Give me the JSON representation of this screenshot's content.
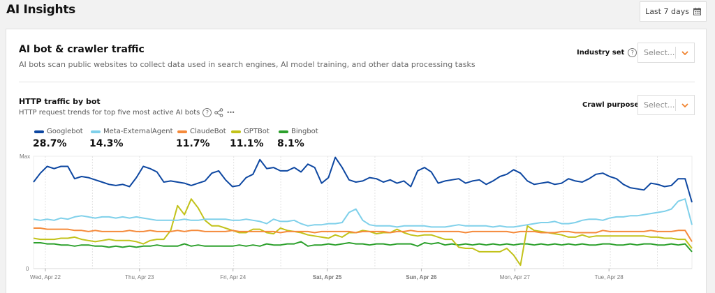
{
  "header": {
    "title": "AI Insights",
    "date_range": "Last 7 days",
    "calendar_icon": "calendar-icon"
  },
  "section": {
    "title": "AI bot & crawler traffic",
    "description": "AI bots scan public websites to collect data used in search engines, AI model training, and other data processing tasks",
    "industry_label": "Industry set",
    "industry_placeholder": "Select..."
  },
  "panel": {
    "title": "HTTP traffic by bot",
    "description": "HTTP request trends for top five most active AI bots",
    "crawl_label": "Crawl purpose",
    "crawl_placeholder": "Select...",
    "help_glyph": "?",
    "more_glyph": "•••"
  },
  "colors": {
    "accent": "#f0822d"
  },
  "chart_data": {
    "type": "line",
    "title": "HTTP traffic by bot",
    "ylabel": "",
    "xlabel": "",
    "y_ticks": [
      "Max",
      "0"
    ],
    "ylim": [
      0,
      100
    ],
    "x_ticks": [
      {
        "label": "Wed, Apr 22",
        "bold": false,
        "pos": 1.8
      },
      {
        "label": "Thu, Apr 23",
        "bold": false,
        "pos": 16.1
      },
      {
        "label": "Fri, Apr 24",
        "bold": false,
        "pos": 30.3
      },
      {
        "label": "Sat, Apr 25",
        "bold": true,
        "pos": 44.6
      },
      {
        "label": "Sun, Apr 26",
        "bold": true,
        "pos": 58.9
      },
      {
        "label": "Mon, Apr 27",
        "bold": false,
        "pos": 73.1
      },
      {
        "label": "Tue, Apr 28",
        "bold": false,
        "pos": 87.4
      }
    ],
    "x_range": [
      0,
      100
    ],
    "series": [
      {
        "name": "Googlebot",
        "share": "28.7%",
        "color": "#0d47a1",
        "values": [
          77,
          85,
          91,
          89,
          91,
          91,
          80,
          82,
          81,
          79,
          77,
          75,
          74,
          75,
          73,
          81,
          91,
          89,
          86,
          77,
          78,
          77,
          76,
          74,
          76,
          78,
          85,
          87,
          79,
          73,
          74,
          81,
          84,
          97,
          89,
          90,
          87,
          87,
          90,
          86,
          93,
          90,
          76,
          81,
          99,
          90,
          79,
          77,
          78,
          81,
          80,
          77,
          79,
          76,
          78,
          73,
          87,
          90,
          86,
          76,
          78,
          79,
          80,
          76,
          78,
          79,
          75,
          78,
          82,
          84,
          88,
          85,
          78,
          75,
          76,
          77,
          75,
          76,
          80,
          78,
          77,
          80,
          84,
          85,
          82,
          80,
          75,
          72,
          71,
          70,
          76,
          75,
          73,
          74,
          80,
          80,
          59
        ]
      },
      {
        "name": "Meta-ExternalAgent",
        "share": "14.3%",
        "color": "#7fd0ea",
        "values": [
          44,
          43,
          44,
          43,
          45,
          44,
          46,
          47,
          46,
          45,
          46,
          46,
          45,
          46,
          45,
          46,
          45,
          44,
          43,
          43,
          43,
          43,
          44,
          43,
          43,
          44,
          44,
          44,
          44,
          43,
          43,
          44,
          43,
          42,
          40,
          44,
          42,
          42,
          43,
          40,
          38,
          39,
          39,
          40,
          40,
          41,
          50,
          53,
          43,
          39,
          38,
          38,
          38,
          37,
          38,
          38,
          38,
          38,
          37,
          37,
          37,
          38,
          39,
          38,
          38,
          38,
          38,
          37,
          38,
          37,
          37,
          38,
          39,
          40,
          41,
          41,
          42,
          40,
          40,
          41,
          43,
          44,
          44,
          43,
          45,
          46,
          46,
          47,
          47,
          48,
          49,
          50,
          51,
          53,
          60,
          62,
          39
        ]
      },
      {
        "name": "ClaudeBot",
        "share": "11.7%",
        "color": "#f58a3b",
        "values": [
          36,
          36,
          35,
          35,
          35,
          35,
          34,
          34,
          33,
          34,
          33,
          33,
          33,
          33,
          34,
          33,
          33,
          34,
          33,
          33,
          33,
          34,
          33,
          34,
          34,
          33,
          33,
          33,
          33,
          34,
          33,
          33,
          33,
          33,
          33,
          33,
          32,
          33,
          33,
          33,
          33,
          32,
          33,
          33,
          33,
          33,
          33,
          32,
          33,
          33,
          33,
          33,
          32,
          33,
          33,
          34,
          33,
          33,
          33,
          33,
          33,
          33,
          33,
          32,
          33,
          33,
          33,
          33,
          33,
          33,
          32,
          33,
          33,
          33,
          32,
          32,
          32,
          33,
          33,
          32,
          32,
          32,
          32,
          34,
          33,
          33,
          33,
          33,
          33,
          33,
          34,
          33,
          33,
          33,
          34,
          34,
          24
        ]
      },
      {
        "name": "GPTBot",
        "share": "11.1%",
        "color": "#c2c21a",
        "values": [
          27,
          26,
          26,
          26,
          27,
          27,
          28,
          26,
          25,
          24,
          25,
          26,
          25,
          25,
          25,
          24,
          22,
          25,
          26,
          26,
          34,
          56,
          48,
          62,
          54,
          43,
          38,
          38,
          36,
          34,
          32,
          32,
          35,
          35,
          32,
          31,
          36,
          34,
          33,
          32,
          30,
          29,
          28,
          27,
          30,
          28,
          32,
          32,
          34,
          33,
          31,
          32,
          32,
          35,
          32,
          30,
          29,
          30,
          30,
          28,
          26,
          26,
          19,
          18,
          18,
          15,
          15,
          15,
          15,
          18,
          12,
          3,
          38,
          34,
          33,
          32,
          31,
          30,
          28,
          28,
          30,
          28,
          29,
          29,
          29,
          29,
          29,
          29,
          29,
          29,
          28,
          28,
          27,
          27,
          26,
          26,
          18
        ]
      },
      {
        "name": "Bingbot",
        "share": "8.1%",
        "color": "#2ca02c",
        "values": [
          23,
          23,
          22,
          22,
          21,
          21,
          20,
          21,
          21,
          20,
          20,
          19,
          20,
          19,
          20,
          19,
          20,
          20,
          21,
          20,
          20,
          20,
          22,
          20,
          21,
          20,
          20,
          20,
          20,
          20,
          21,
          20,
          21,
          20,
          22,
          21,
          21,
          22,
          22,
          24,
          20,
          21,
          21,
          22,
          21,
          22,
          23,
          22,
          22,
          21,
          22,
          22,
          21,
          22,
          22,
          22,
          20,
          23,
          22,
          23,
          21,
          22,
          21,
          22,
          21,
          22,
          21,
          22,
          21,
          22,
          21,
          22,
          22,
          21,
          22,
          21,
          22,
          21,
          22,
          21,
          22,
          21,
          21,
          22,
          22,
          21,
          21,
          22,
          21,
          22,
          22,
          21,
          21,
          22,
          21,
          22,
          15
        ]
      }
    ]
  }
}
